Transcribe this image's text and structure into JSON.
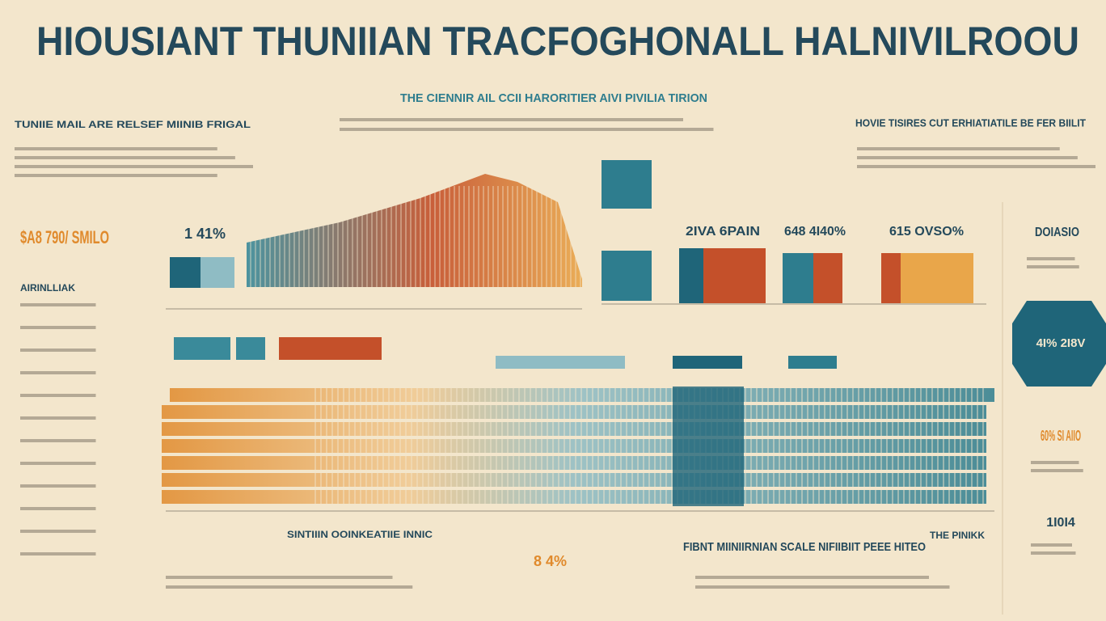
{
  "header": {
    "title": "HIOUSIANT THUNIIAN TRACFOGHONALL HALNIVILROOU",
    "subtitle": "THE CIENNIR AIL CCII HARORITIER AIVI PIVILIA TIRION"
  },
  "left_panel": {
    "heading": "TUNIIE MAIL ARE RELSEF MIINIB FRIGAL",
    "stat": "$A8 790/ SMILO",
    "label": "AIRINLLIAK"
  },
  "center": {
    "stats": [
      "1 41%",
      "2IVA 6PAIN",
      "648 4I40%",
      "615 OVSO%"
    ]
  },
  "right_panel": {
    "heading": "HOVIE TISIRES CUT ERHIATIATILE BE FER BIILIT",
    "stats": [
      "DOIASIO",
      "4I% 2I8V",
      "60% SI AIIO",
      "1I0I4"
    ]
  },
  "footer": {
    "left_heading": "SINTIIIN OOINKEATIIE INNIC",
    "left_stat": "8 4%",
    "right_heading": "FIBNT MIINIIRNIAN SCALE NIFIIBIIT PEEE HITEO",
    "right_note": "THE PINIKK"
  }
}
